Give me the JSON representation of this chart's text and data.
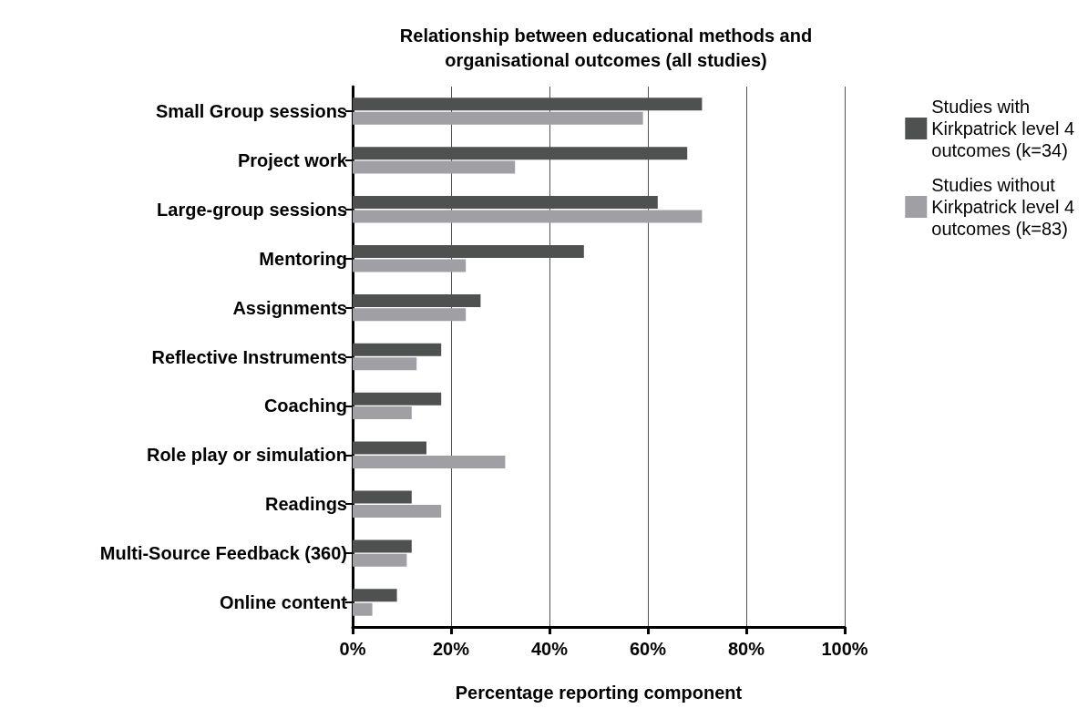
{
  "chart_data": {
    "type": "bar",
    "orientation": "horizontal",
    "title": "Relationship between educational methods and\norganisational outcomes (all studies)",
    "xlabel": "Percentage reporting component",
    "categories": [
      "Small Group sessions",
      "Project work",
      "Large-group sessions",
      "Mentoring",
      "Assignments",
      "Reflective Instruments",
      "Coaching",
      "Role play or simulation",
      "Readings",
      "Multi-Source Feedback (360)",
      "Online content"
    ],
    "series": [
      {
        "name": "Studies with\nKirkpatrick level 4\noutcomes (k=34)",
        "color": "#4f5150",
        "values": [
          71,
          68,
          62,
          47,
          26,
          18,
          18,
          15,
          12,
          12,
          9
        ]
      },
      {
        "name": "Studies without\nKirkpatrick level 4\noutcomes (k=83)",
        "color": "#a09fa4",
        "values": [
          59,
          33,
          71,
          23,
          23,
          13,
          12,
          31,
          18,
          11,
          4
        ]
      }
    ],
    "xlim": [
      0,
      100
    ],
    "xticks": [
      {
        "value": 0,
        "label": "0%"
      },
      {
        "value": 20,
        "label": "20%"
      },
      {
        "value": 40,
        "label": "40%"
      },
      {
        "value": 60,
        "label": "60%"
      },
      {
        "value": 80,
        "label": "80%"
      },
      {
        "value": 100,
        "label": "100%"
      }
    ],
    "grid": "x",
    "legend": "top right"
  }
}
